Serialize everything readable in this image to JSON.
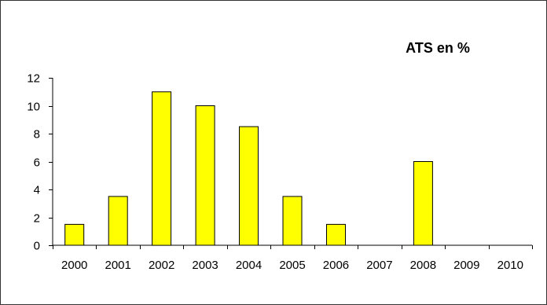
{
  "chart_data": {
    "type": "bar",
    "title": "ATS en %",
    "xlabel": "",
    "ylabel": "",
    "categories": [
      "2000",
      "2001",
      "2002",
      "2003",
      "2004",
      "2005",
      "2006",
      "2007",
      "2008",
      "2009",
      "2010"
    ],
    "values": [
      1.5,
      3.5,
      11,
      10,
      8.5,
      3.5,
      1.5,
      0,
      6,
      0,
      0
    ],
    "ylim": [
      0,
      12
    ],
    "yticks": [
      0,
      2,
      4,
      6,
      8,
      10,
      12
    ],
    "grid": false,
    "legend": "none",
    "bar_color": "#FFFF00",
    "bar_edge_color": "#000000"
  }
}
